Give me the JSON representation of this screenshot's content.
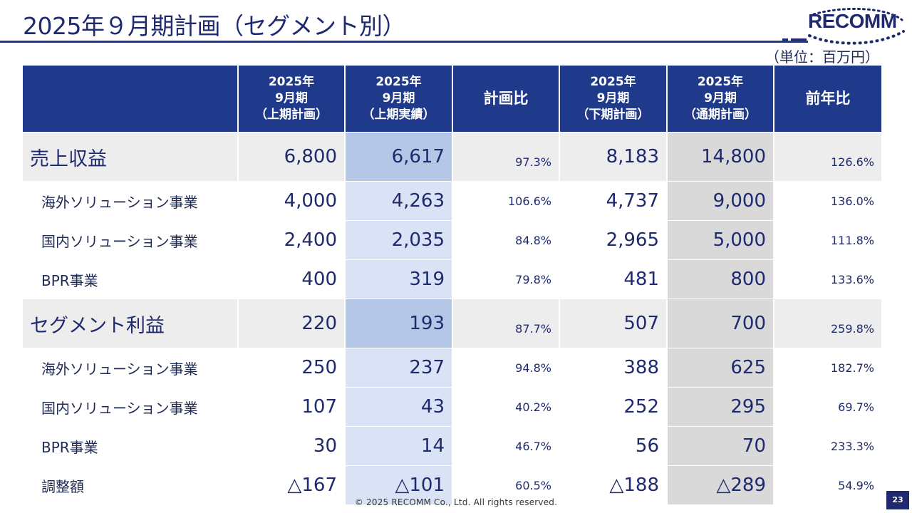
{
  "header": {
    "title": "2025年９月期計画（セグメント別）",
    "unit": "（単位：百万円）",
    "logo_text": "RECOMM"
  },
  "table": {
    "headers": [
      "",
      "2025年\n9月期\n（上期計画）",
      "2025年\n9月期\n（上期実績）",
      "計画比",
      "2025年\n9月期\n（下期計画）",
      "2025年\n9月期\n（通期計画）",
      "前年比"
    ],
    "rows": [
      {
        "label": "売上収益",
        "major": true,
        "h1_plan": "6,800",
        "h1_actual": "6,617",
        "plan_ratio": "97.3%",
        "h2_plan": "8,183",
        "full_plan": "14,800",
        "yoy": "126.6%"
      },
      {
        "label": "海外ソリューション事業",
        "major": false,
        "h1_plan": "4,000",
        "h1_actual": "4,263",
        "plan_ratio": "106.6%",
        "h2_plan": "4,737",
        "full_plan": "9,000",
        "yoy": "136.0%"
      },
      {
        "label": "国内ソリューション事業",
        "major": false,
        "h1_plan": "2,400",
        "h1_actual": "2,035",
        "plan_ratio": "84.8%",
        "h2_plan": "2,965",
        "full_plan": "5,000",
        "yoy": "111.8%"
      },
      {
        "label": "BPR事業",
        "major": false,
        "h1_plan": "400",
        "h1_actual": "319",
        "plan_ratio": "79.8%",
        "h2_plan": "481",
        "full_plan": "800",
        "yoy": "133.6%"
      },
      {
        "label": "セグメント利益",
        "major": true,
        "h1_plan": "220",
        "h1_actual": "193",
        "plan_ratio": "87.7%",
        "h2_plan": "507",
        "full_plan": "700",
        "yoy": "259.8%"
      },
      {
        "label": "海外ソリューション事業",
        "major": false,
        "h1_plan": "250",
        "h1_actual": "237",
        "plan_ratio": "94.8%",
        "h2_plan": "388",
        "full_plan": "625",
        "yoy": "182.7%"
      },
      {
        "label": "国内ソリューション事業",
        "major": false,
        "h1_plan": "107",
        "h1_actual": "43",
        "plan_ratio": "40.2%",
        "h2_plan": "252",
        "full_plan": "295",
        "yoy": "69.7%"
      },
      {
        "label": "BPR事業",
        "major": false,
        "h1_plan": "30",
        "h1_actual": "14",
        "plan_ratio": "46.7%",
        "h2_plan": "56",
        "full_plan": "70",
        "yoy": "233.3%"
      },
      {
        "label": "調整額",
        "major": false,
        "h1_plan": "△167",
        "h1_actual": "△101",
        "plan_ratio": "60.5%",
        "h2_plan": "△188",
        "full_plan": "△289",
        "yoy": "54.9%"
      }
    ]
  },
  "footer": {
    "copyright": "© 2025 RECOMM Co., Ltd. All rights reserved.",
    "page": "23"
  },
  "colors": {
    "navy": "#1f3a8a",
    "major_row_bg": "#ededed",
    "actual_major_bg": "#b4c7e7",
    "actual_bg": "#dae3f5",
    "full_plan_bg": "#d9d9d9"
  }
}
